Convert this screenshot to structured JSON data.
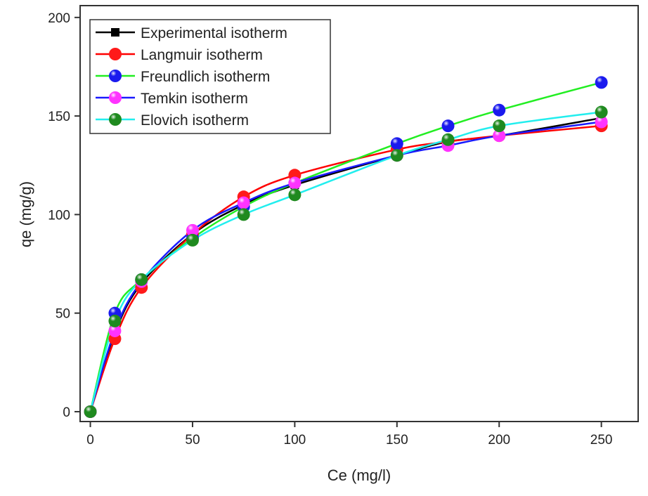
{
  "chart_data": {
    "type": "line",
    "title": "",
    "xlabel": "Ce (mg/l)",
    "ylabel": "qe (mg/g)",
    "xlim": [
      -5,
      268
    ],
    "ylim": [
      -5,
      206
    ],
    "xticks": [
      0,
      50,
      100,
      150,
      200,
      250
    ],
    "yticks": [
      0,
      50,
      100,
      150,
      200
    ],
    "grid": false,
    "legend_position": "top-left",
    "x": [
      0,
      12,
      25,
      50,
      75,
      100,
      150,
      175,
      200,
      250
    ],
    "series": [
      {
        "name": "Experimental isotherm",
        "line_color": "#000000",
        "marker_color": "#000000",
        "marker": "square",
        "values": [
          0,
          40,
          65,
          90,
          105,
          115,
          130,
          137,
          140,
          149
        ]
      },
      {
        "name": "Langmuir isotherm",
        "line_color": "#ff0000",
        "marker_color": "#ff1a1a",
        "marker": "circle",
        "values": [
          0,
          37,
          63,
          90,
          109,
          120,
          133,
          137,
          140,
          145
        ]
      },
      {
        "name": "Freundlich isotherm",
        "line_color": "#22ee22",
        "marker_color": "#1a1aee",
        "marker": "ball",
        "values": [
          0,
          50,
          67,
          88,
          104,
          116,
          136,
          145,
          153,
          167
        ]
      },
      {
        "name": "Temkin isotherm",
        "line_color": "#1a1aff",
        "marker_color": "#ff33ff",
        "marker": "ball",
        "values": [
          0,
          41,
          66,
          92,
          106,
          116,
          130,
          135,
          140,
          147
        ]
      },
      {
        "name": "Elovich isotherm",
        "line_color": "#22eeee",
        "marker_color": "#1f8a1f",
        "marker": "ball",
        "values": [
          0,
          46,
          67,
          87,
          100,
          110,
          130,
          138,
          145,
          152
        ]
      }
    ]
  }
}
